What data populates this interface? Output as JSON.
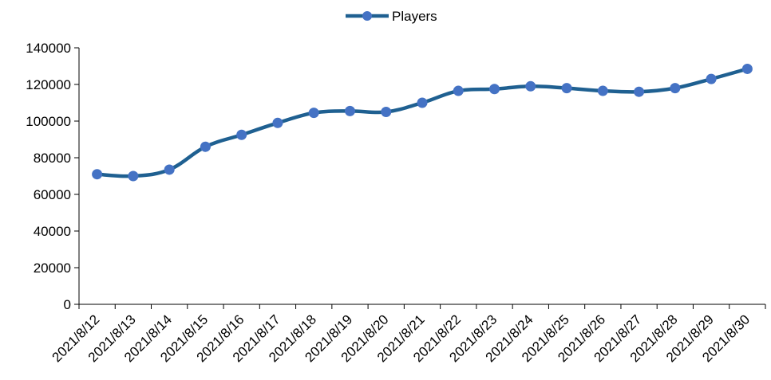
{
  "chart_data": {
    "type": "line",
    "title": "",
    "xlabel": "",
    "ylabel": "",
    "categories": [
      "2021/8/12",
      "2021/8/13",
      "2021/8/14",
      "2021/8/15",
      "2021/8/16",
      "2021/8/17",
      "2021/8/18",
      "2021/8/19",
      "2021/8/20",
      "2021/8/21",
      "2021/8/22",
      "2021/8/23",
      "2021/8/24",
      "2021/8/25",
      "2021/8/26",
      "2021/8/27",
      "2021/8/28",
      "2021/8/29",
      "2021/8/30"
    ],
    "series": [
      {
        "name": "Players",
        "values": [
          71000,
          70000,
          73500,
          86000,
          92500,
          99000,
          104500,
          105500,
          105000,
          110000,
          116500,
          117500,
          119000,
          118000,
          116500,
          116000,
          118000,
          123000,
          128500
        ]
      }
    ],
    "ylim": [
      0,
      140000
    ],
    "yticks": [
      "0",
      "20000",
      "40000",
      "60000",
      "80000",
      "100000",
      "120000",
      "140000"
    ],
    "grid": false,
    "legend": "top-center",
    "colors": {
      "line": "#1f6091",
      "marker": "#4472c4"
    }
  }
}
